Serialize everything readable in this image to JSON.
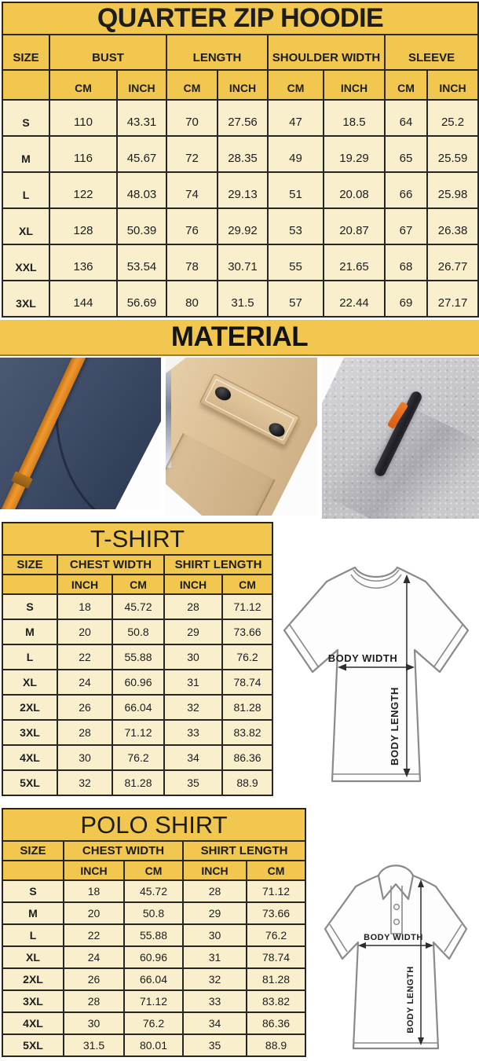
{
  "chart_data": [
    {
      "type": "table",
      "title": "QUARTER ZIP HOODIE",
      "size_col_header": "SIZE",
      "column_groups": [
        "BUST",
        "LENGTH",
        "SHOULDER WIDTH",
        "SLEEVE"
      ],
      "unit_headers": [
        "CM",
        "INCH",
        "CM",
        "INCH",
        "CM",
        "INCH",
        "CM",
        "INCH"
      ],
      "rows": [
        {
          "size": "S",
          "values": [
            "110",
            "43.31",
            "70",
            "27.56",
            "47",
            "18.5",
            "64",
            "25.2"
          ]
        },
        {
          "size": "M",
          "values": [
            "116",
            "45.67",
            "72",
            "28.35",
            "49",
            "19.29",
            "65",
            "25.59"
          ]
        },
        {
          "size": "L",
          "values": [
            "122",
            "48.03",
            "74",
            "29.13",
            "51",
            "20.08",
            "66",
            "25.98"
          ]
        },
        {
          "size": "XL",
          "values": [
            "128",
            "50.39",
            "76",
            "29.92",
            "53",
            "20.87",
            "67",
            "26.38"
          ]
        },
        {
          "size": "XXL",
          "values": [
            "136",
            "53.54",
            "78",
            "30.71",
            "55",
            "21.65",
            "68",
            "26.77"
          ]
        },
        {
          "size": "3XL",
          "values": [
            "144",
            "56.69",
            "80",
            "31.5",
            "57",
            "22.44",
            "69",
            "27.17"
          ]
        }
      ]
    },
    {
      "type": "table",
      "title": "T-SHIRT",
      "size_col_header": "SIZE",
      "column_groups": [
        "CHEST WIDTH",
        "SHIRT LENGTH"
      ],
      "unit_headers": [
        "INCH",
        "CM",
        "INCH",
        "CM"
      ],
      "rows": [
        {
          "size": "S",
          "values": [
            "18",
            "45.72",
            "28",
            "71.12"
          ]
        },
        {
          "size": "M",
          "values": [
            "20",
            "50.8",
            "29",
            "73.66"
          ]
        },
        {
          "size": "L",
          "values": [
            "22",
            "55.88",
            "30",
            "76.2"
          ]
        },
        {
          "size": "XL",
          "values": [
            "24",
            "60.96",
            "31",
            "78.74"
          ]
        },
        {
          "size": "2XL",
          "values": [
            "26",
            "66.04",
            "32",
            "81.28"
          ]
        },
        {
          "size": "3XL",
          "values": [
            "28",
            "71.12",
            "33",
            "83.82"
          ]
        },
        {
          "size": "4XL",
          "values": [
            "30",
            "76.2",
            "34",
            "86.36"
          ]
        },
        {
          "size": "5XL",
          "values": [
            "32",
            "81.28",
            "35",
            "88.9"
          ]
        }
      ]
    },
    {
      "type": "table",
      "title": "POLO SHIRT",
      "size_col_header": "SIZE",
      "column_groups": [
        "CHEST WIDTH",
        "SHIRT LENGTH"
      ],
      "unit_headers": [
        "INCH",
        "CM",
        "INCH",
        "CM"
      ],
      "rows": [
        {
          "size": "S",
          "values": [
            "18",
            "45.72",
            "28",
            "71.12"
          ]
        },
        {
          "size": "M",
          "values": [
            "20",
            "50.8",
            "29",
            "73.66"
          ]
        },
        {
          "size": "L",
          "values": [
            "22",
            "55.88",
            "30",
            "76.2"
          ]
        },
        {
          "size": "XL",
          "values": [
            "24",
            "60.96",
            "31",
            "78.74"
          ]
        },
        {
          "size": "2XL",
          "values": [
            "26",
            "66.04",
            "32",
            "81.28"
          ]
        },
        {
          "size": "3XL",
          "values": [
            "28",
            "71.12",
            "33",
            "83.82"
          ]
        },
        {
          "size": "4XL",
          "values": [
            "30",
            "76.2",
            "34",
            "86.36"
          ]
        },
        {
          "size": "5XL",
          "values": [
            "31.5",
            "80.01",
            "35",
            "88.9"
          ]
        }
      ]
    }
  ],
  "material": {
    "title": "MATERIAL",
    "photos": [
      {
        "name": "navy fleece with orange drawstring"
      },
      {
        "name": "khaki twill snap-flap pocket"
      },
      {
        "name": "heather gray fleece with zip pocket"
      }
    ]
  },
  "diagrams": {
    "body_width_label": "BODY WIDTH",
    "body_length_label": "BODY LENGTH"
  },
  "colors": {
    "header_yellow": "#f2c750",
    "row_cream": "#f9efcd",
    "table_border": "#272727",
    "navy": "#3d4b66",
    "orange": "#e8862a",
    "khaki": "#d2b48a",
    "gray": "#c7c7cb"
  }
}
